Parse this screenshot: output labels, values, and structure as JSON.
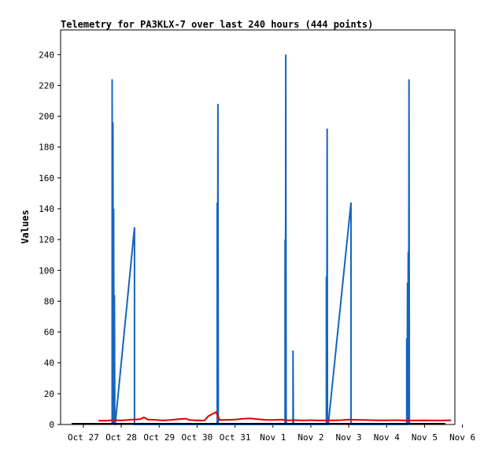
{
  "chart_data": {
    "type": "line",
    "title": "Telemetry for PA3KLX-7 over last 240 hours (444 points)",
    "xlabel": "",
    "ylabel": "Values",
    "xlim": [
      -0.6,
      9.8
    ],
    "ylim": [
      0,
      256
    ],
    "yticks": [
      0,
      20,
      40,
      60,
      80,
      100,
      120,
      140,
      160,
      180,
      200,
      220,
      240
    ],
    "xticks": [
      {
        "v": 0,
        "label": "Oct 27"
      },
      {
        "v": 1,
        "label": "Oct 28"
      },
      {
        "v": 2,
        "label": "Oct 29"
      },
      {
        "v": 3,
        "label": "Oct 30"
      },
      {
        "v": 4,
        "label": "Oct 31"
      },
      {
        "v": 5,
        "label": "Nov 1"
      },
      {
        "v": 6,
        "label": "Nov 2"
      },
      {
        "v": 7,
        "label": "Nov 3"
      },
      {
        "v": 8,
        "label": "Nov 4"
      },
      {
        "v": 9,
        "label": "Nov 5"
      },
      {
        "v": 10,
        "label": "Nov 6"
      }
    ],
    "grid": false,
    "legend": "none",
    "series": [
      {
        "color": "#1565c0",
        "points": [
          [
            0.76,
            0
          ],
          [
            0.76,
            224
          ],
          [
            0.77,
            0
          ],
          [
            0.78,
            196
          ],
          [
            0.79,
            0
          ],
          [
            0.8,
            140
          ],
          [
            0.81,
            0
          ],
          [
            0.82,
            84
          ],
          [
            0.83,
            0
          ],
          [
            0.84,
            0
          ],
          [
            1.35,
            128
          ],
          [
            1.35,
            0
          ],
          [
            3.53,
            0
          ],
          [
            3.53,
            144
          ],
          [
            3.54,
            0
          ],
          [
            3.55,
            208
          ],
          [
            3.56,
            0
          ],
          [
            5.32,
            0
          ],
          [
            5.32,
            120
          ],
          [
            5.33,
            0
          ],
          [
            5.34,
            240
          ],
          [
            5.35,
            0
          ],
          [
            5.53,
            0
          ],
          [
            5.53,
            48
          ],
          [
            5.54,
            0
          ],
          [
            6.41,
            0
          ],
          [
            6.41,
            96
          ],
          [
            6.42,
            0
          ],
          [
            6.43,
            192
          ],
          [
            6.44,
            0
          ],
          [
            6.46,
            0
          ],
          [
            7.06,
            144
          ],
          [
            7.06,
            0
          ],
          [
            8.53,
            0
          ],
          [
            8.53,
            56
          ],
          [
            8.54,
            0
          ],
          [
            8.55,
            92
          ],
          [
            8.56,
            0
          ],
          [
            8.57,
            112
          ],
          [
            8.58,
            0
          ],
          [
            8.59,
            224
          ],
          [
            8.6,
            0
          ]
        ]
      },
      {
        "color": "#e00000",
        "points": [
          [
            0.4,
            2.5
          ],
          [
            0.6,
            2.5
          ],
          [
            0.8,
            2.8
          ],
          [
            1.0,
            2.6
          ],
          [
            1.2,
            3.0
          ],
          [
            1.5,
            3.4
          ],
          [
            1.6,
            4.6
          ],
          [
            1.7,
            3.2
          ],
          [
            1.9,
            3.0
          ],
          [
            2.1,
            2.6
          ],
          [
            2.3,
            2.9
          ],
          [
            2.5,
            3.4
          ],
          [
            2.7,
            3.8
          ],
          [
            2.8,
            2.9
          ],
          [
            3.0,
            2.6
          ],
          [
            3.2,
            2.7
          ],
          [
            3.3,
            5.5
          ],
          [
            3.5,
            8.0
          ],
          [
            3.6,
            2.9
          ],
          [
            3.8,
            3.0
          ],
          [
            4.0,
            3.2
          ],
          [
            4.2,
            3.7
          ],
          [
            4.4,
            4.0
          ],
          [
            4.6,
            3.4
          ],
          [
            4.8,
            3.0
          ],
          [
            5.0,
            2.9
          ],
          [
            5.2,
            3.2
          ],
          [
            5.4,
            2.7
          ],
          [
            5.6,
            2.8
          ],
          [
            5.8,
            2.6
          ],
          [
            6.0,
            2.8
          ],
          [
            6.2,
            2.6
          ],
          [
            6.4,
            2.7
          ],
          [
            6.6,
            2.7
          ],
          [
            6.8,
            2.8
          ],
          [
            7.0,
            3.2
          ],
          [
            7.2,
            3.0
          ],
          [
            7.4,
            2.9
          ],
          [
            7.6,
            2.8
          ],
          [
            7.8,
            2.7
          ],
          [
            8.0,
            2.7
          ],
          [
            8.2,
            2.8
          ],
          [
            8.4,
            2.7
          ],
          [
            8.6,
            2.6
          ],
          [
            8.8,
            2.6
          ],
          [
            9.0,
            2.7
          ],
          [
            9.2,
            2.6
          ],
          [
            9.4,
            2.6
          ],
          [
            9.6,
            2.7
          ],
          [
            9.7,
            2.7
          ]
        ]
      }
    ]
  }
}
